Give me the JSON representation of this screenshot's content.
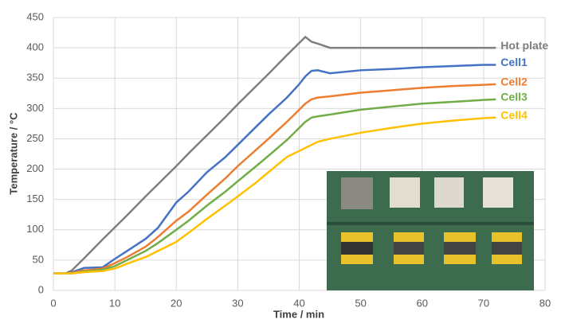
{
  "chart_data": {
    "type": "line",
    "x_label": "Time / min",
    "y_label": "Temperature / °C",
    "x": [
      0,
      2,
      3,
      5,
      8,
      10,
      12,
      15,
      17,
      20,
      22,
      25,
      28,
      30,
      33,
      35,
      38,
      40,
      41,
      42,
      43,
      45,
      50,
      55,
      60,
      65,
      70,
      72
    ],
    "series": [
      {
        "name": "Hot plate",
        "color": "#7f7f7f",
        "values": [
          28,
          28,
          33,
          53,
          84,
          104,
          124,
          155,
          175,
          205,
          226,
          256,
          286,
          307,
          337,
          357,
          388,
          408,
          418,
          410,
          407,
          400,
          400,
          400,
          400,
          400,
          400,
          400
        ]
      },
      {
        "name": "Cell1",
        "color": "#4472c4",
        "values": [
          28,
          28,
          30,
          37,
          38,
          52,
          65,
          85,
          103,
          145,
          163,
          195,
          220,
          240,
          270,
          290,
          318,
          340,
          353,
          362,
          363,
          358,
          363,
          365,
          368,
          370,
          372,
          372
        ]
      },
      {
        "name": "Cell2",
        "color": "#ed7d31",
        "values": [
          28,
          28,
          29,
          33,
          36,
          45,
          55,
          72,
          88,
          115,
          130,
          158,
          185,
          205,
          232,
          250,
          278,
          298,
          308,
          315,
          318,
          320,
          326,
          330,
          334,
          337,
          339,
          340
        ]
      },
      {
        "name": "Cell3",
        "color": "#70ad47",
        "values": [
          28,
          28,
          28,
          31,
          34,
          40,
          50,
          65,
          78,
          100,
          115,
          140,
          163,
          180,
          205,
          222,
          248,
          268,
          278,
          285,
          287,
          290,
          298,
          303,
          308,
          311,
          314,
          315
        ]
      },
      {
        "name": "Cell4",
        "color": "#ffc000",
        "values": [
          28,
          28,
          28,
          30,
          32,
          36,
          44,
          55,
          65,
          80,
          95,
          118,
          140,
          155,
          178,
          195,
          220,
          230,
          235,
          240,
          245,
          250,
          260,
          268,
          275,
          280,
          284,
          285
        ]
      }
    ],
    "xlim": [
      0,
      80
    ],
    "xticks": [
      0,
      10,
      20,
      30,
      40,
      50,
      60,
      70,
      80
    ],
    "ylim": [
      0,
      450
    ],
    "yticks": [
      0,
      50,
      100,
      150,
      200,
      250,
      300,
      350,
      400,
      450
    ],
    "grid": true
  }
}
